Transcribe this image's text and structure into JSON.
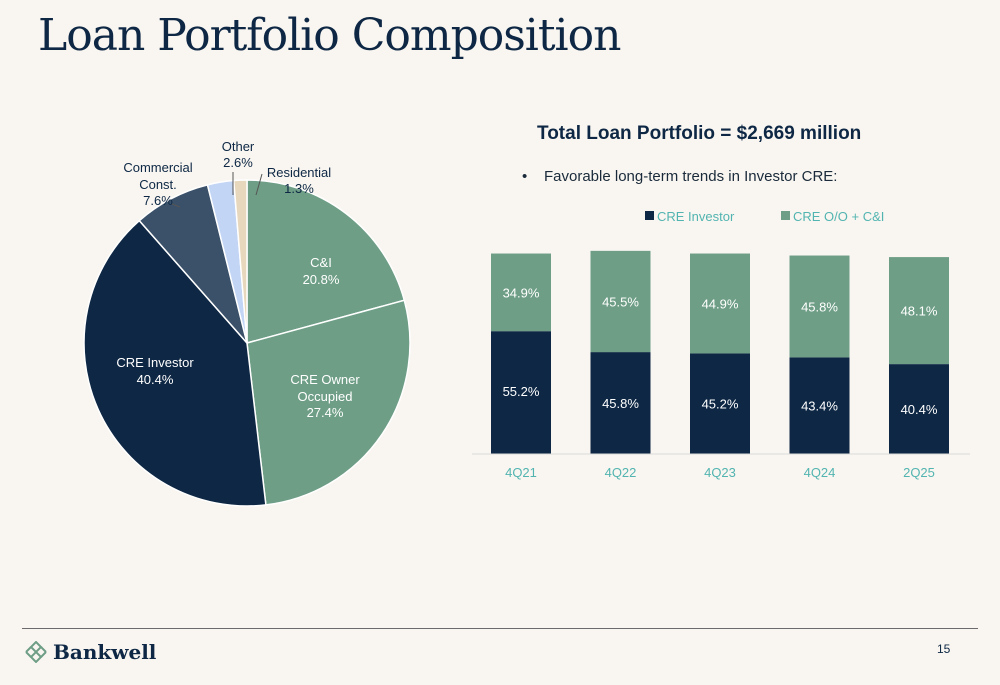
{
  "slide": {
    "title": "Loan Portfolio Composition",
    "page_number": "15",
    "logo_text": "Bankwell"
  },
  "bar_section": {
    "title": "Total Loan Portfolio = $2,669 million",
    "bullet": "Favorable long-term trends in Investor CRE:"
  },
  "colors": {
    "navy": "#0d2744",
    "green": "#6e9e86",
    "slate": "#3a5169",
    "light_blue": "#c3d5f5",
    "beige": "#e7d8bd",
    "axis_label": "#52b4b0",
    "background": "#f9f6f1"
  },
  "chart_data": [
    {
      "type": "pie",
      "slices": [
        {
          "label": "C&I",
          "value": 20.8,
          "display": "20.8%",
          "color": "#6e9e86"
        },
        {
          "label": "CRE Owner Occupied",
          "value": 27.4,
          "display": "27.4%",
          "color": "#6e9e86"
        },
        {
          "label": "CRE Investor",
          "value": 40.4,
          "display": "40.4%",
          "color": "#0d2744"
        },
        {
          "label": "Commercial Const.",
          "value": 7.6,
          "display": "7.6%",
          "color": "#3a5169"
        },
        {
          "label": "Other",
          "value": 2.6,
          "display": "2.6%",
          "color": "#c3d5f5"
        },
        {
          "label": "Residential",
          "value": 1.3,
          "display": "1.3%",
          "color": "#e7d8bd"
        }
      ]
    },
    {
      "type": "bar",
      "stacked": true,
      "categories": [
        "4Q21",
        "4Q22",
        "4Q23",
        "4Q24",
        "2Q25"
      ],
      "series": [
        {
          "name": "CRE Investor",
          "color": "#0d2744",
          "values": [
            55.2,
            45.8,
            45.2,
            43.4,
            40.4
          ],
          "labels": [
            "55.2%",
            "45.8%",
            "45.2%",
            "43.4%",
            "40.4%"
          ]
        },
        {
          "name": "CRE O/O + C&I",
          "color": "#6e9e86",
          "values": [
            34.9,
            45.5,
            44.9,
            45.8,
            48.1
          ],
          "labels": [
            "34.9%",
            "45.5%",
            "44.9%",
            "45.8%",
            "48.1%"
          ]
        }
      ],
      "legend": "top"
    }
  ]
}
